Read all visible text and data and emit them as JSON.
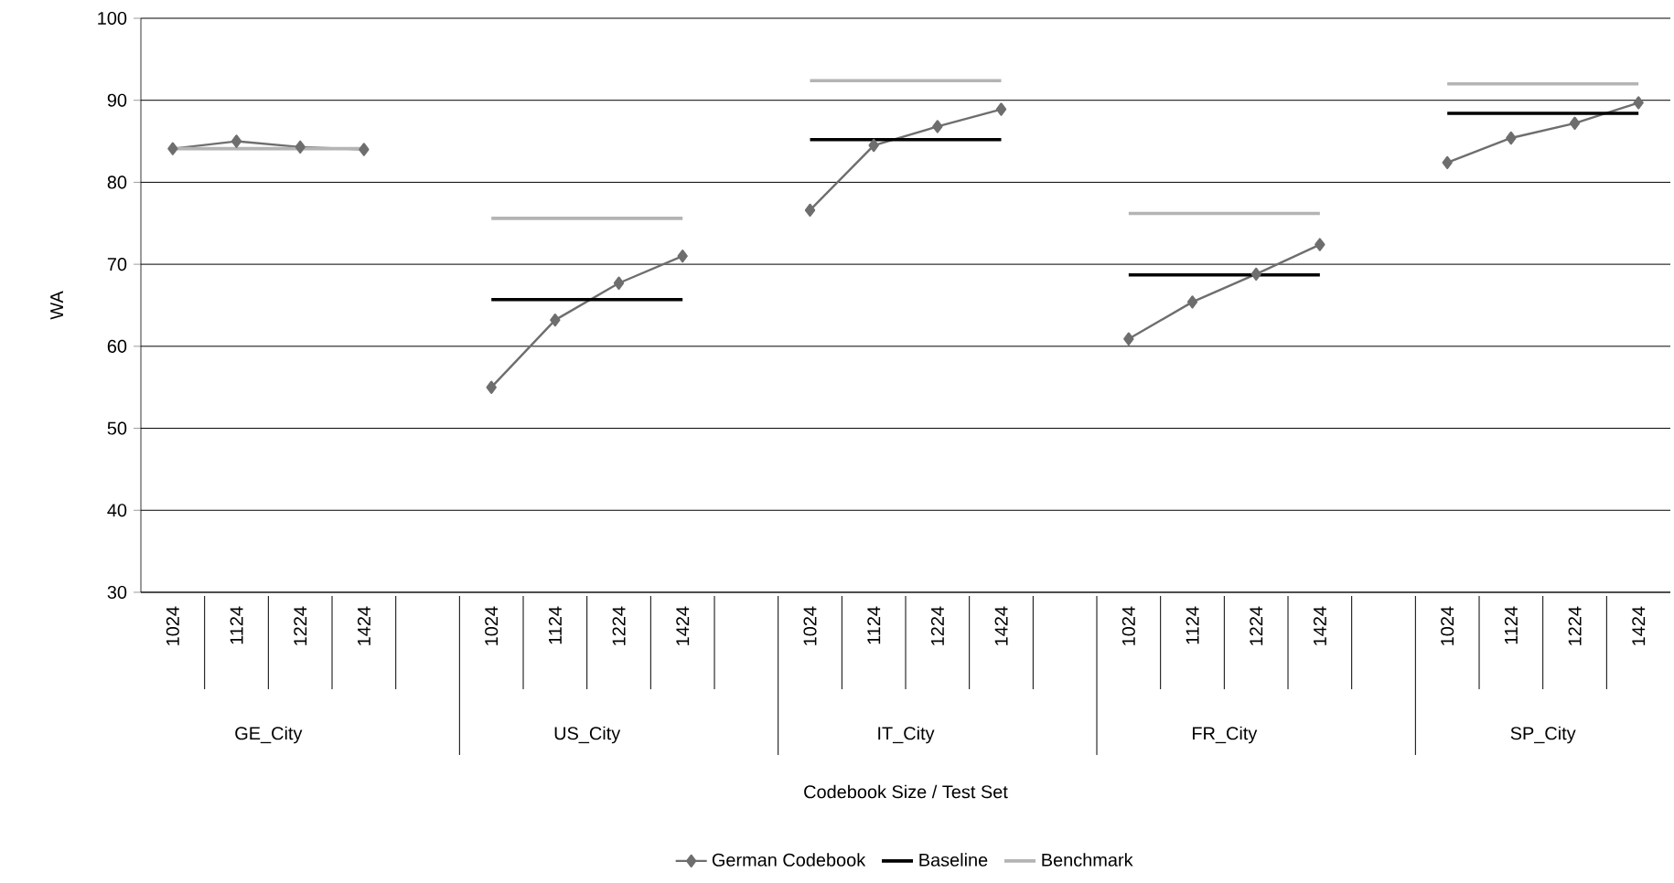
{
  "chart_data": {
    "type": "line",
    "ylabel": "WA",
    "categories": [
      "1024",
      "1124",
      "1224",
      "1424",
      null,
      "1024",
      "1124",
      "1224",
      "1424",
      null,
      "1024",
      "1124",
      "1224",
      "1424",
      null,
      "1024",
      "1124",
      "1224",
      "1424",
      null,
      "1024",
      "1124",
      "1224",
      "1424"
    ],
    "annotations": [
      "GE_City",
      "US_City",
      "IT_City",
      "FR_City",
      "SP_City",
      "Codebook Size / Test Set"
    ],
    "series": [
      {
        "name": "German Codebook",
        "color": "#6e6e6e",
        "marker": "diamond",
        "values": [
          84.1,
          85.0,
          84.3,
          84.0,
          null,
          55.0,
          63.2,
          67.7,
          71.0,
          null,
          76.6,
          84.5,
          86.8,
          88.9,
          null,
          60.9,
          65.4,
          68.8,
          72.4,
          null,
          82.4,
          85.4,
          87.2,
          89.7
        ]
      },
      {
        "name": "Baseline",
        "color": "#000000",
        "values": [
          null,
          null,
          null,
          null,
          null,
          65.7,
          65.7,
          65.7,
          65.7,
          null,
          85.2,
          85.2,
          85.2,
          85.2,
          null,
          68.7,
          68.7,
          68.7,
          68.7,
          null,
          88.4,
          88.4,
          88.4,
          88.4
        ]
      },
      {
        "name": "Benchmark",
        "color": "#b4b4b4",
        "values": [
          84.1,
          84.1,
          84.1,
          84.1,
          null,
          75.6,
          75.6,
          75.6,
          75.6,
          null,
          92.4,
          92.4,
          92.4,
          92.4,
          null,
          76.2,
          76.2,
          76.2,
          76.2,
          null,
          92.0,
          92.0,
          92.0,
          92.0
        ]
      }
    ],
    "ylim": [
      30,
      100
    ],
    "yticks": [
      30,
      40,
      50,
      60,
      70,
      80,
      90,
      100
    ],
    "grid": "y",
    "legend": "bottom"
  }
}
